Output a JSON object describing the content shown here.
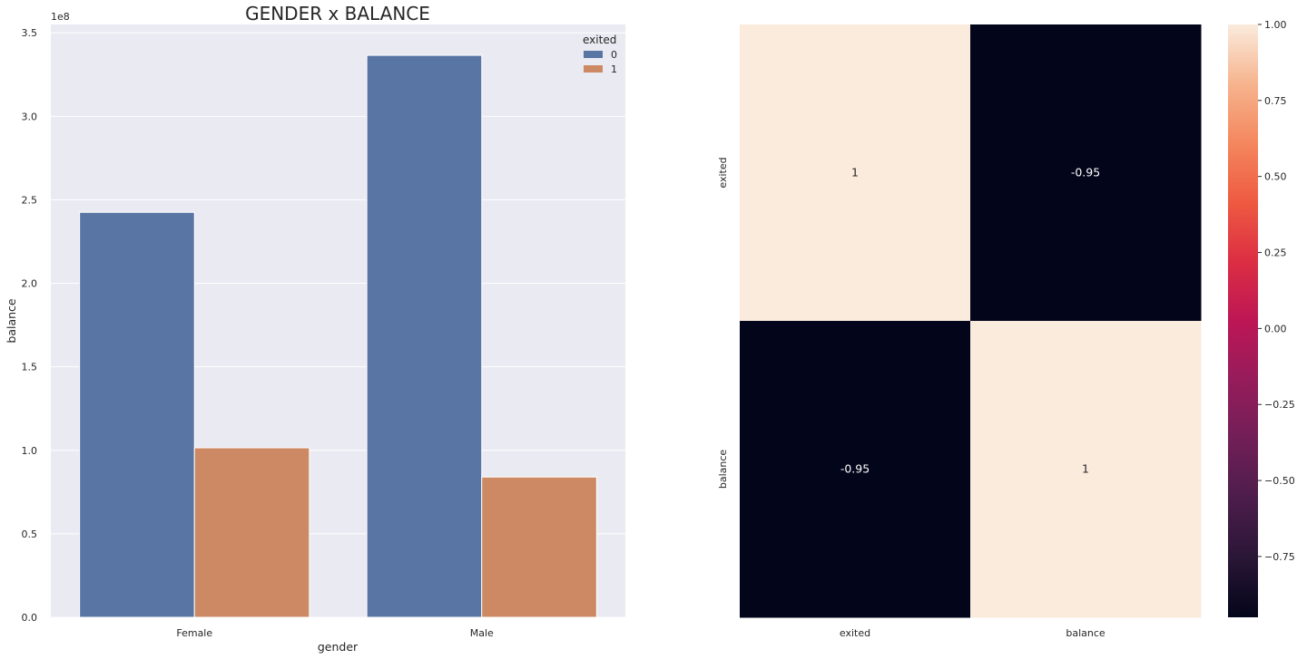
{
  "chart_data": [
    {
      "type": "bar",
      "title": "GENDER x BALANCE",
      "xlabel": "gender",
      "ylabel": "balance",
      "y_offset_text": "1e8",
      "categories": [
        "Female",
        "Male"
      ],
      "ylim": [
        0,
        355000000
      ],
      "yticks": [
        0,
        50000000,
        100000000,
        150000000,
        200000000,
        250000000,
        300000000,
        350000000
      ],
      "ytick_labels": [
        "0.0",
        "0.5",
        "1.0",
        "1.5",
        "2.0",
        "2.5",
        "3.0",
        "3.5"
      ],
      "legend_title": "exited",
      "legend_placement": "top-right",
      "grid": true,
      "background": "#eaeaf2",
      "series": [
        {
          "name": "0",
          "color": "#5975a4",
          "values": [
            242500000,
            336500000
          ]
        },
        {
          "name": "1",
          "color": "#cc8963",
          "values": [
            101500000,
            84000000
          ]
        }
      ]
    },
    {
      "type": "heatmap",
      "xlabels": [
        "exited",
        "balance"
      ],
      "ylabels": [
        "exited",
        "balance"
      ],
      "values": [
        [
          1,
          -0.95
        ],
        [
          -0.95,
          1
        ]
      ],
      "annotations": [
        [
          "1",
          "-0.95"
        ],
        [
          "-0.95",
          "1"
        ]
      ],
      "colormap": "rocket",
      "colorbar": {
        "vmin": -0.95,
        "vmax": 1,
        "ticks": [
          1.0,
          0.75,
          0.5,
          0.25,
          0.0,
          -0.25,
          -0.5,
          -0.75
        ],
        "tick_labels": [
          "1.00",
          "0.75",
          "0.50",
          "0.25",
          "0.00",
          "−0.25",
          "−0.50",
          "−0.75"
        ]
      }
    }
  ]
}
